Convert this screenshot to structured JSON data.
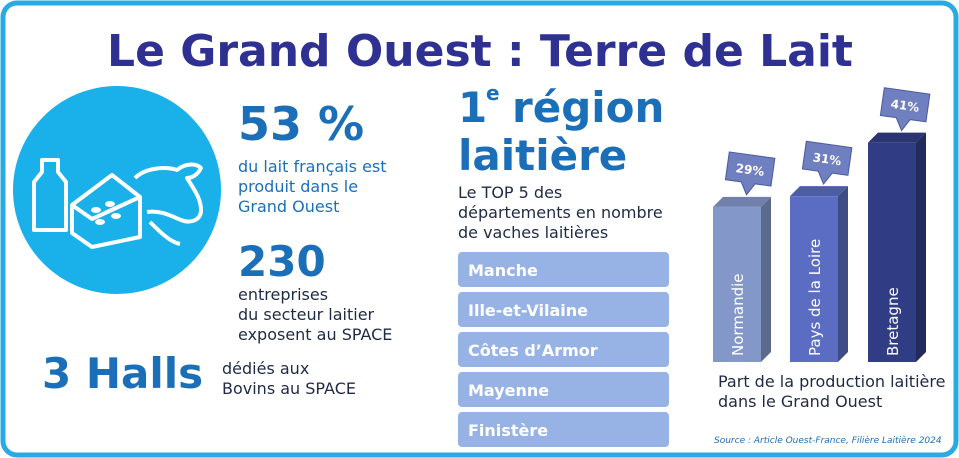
{
  "title": "Le Grand Ouest : Terre de Lait",
  "stats": {
    "share": {
      "value": "53 %",
      "lines": [
        "du lait français est",
        "produit dans le",
        "Grand Ouest"
      ]
    },
    "companies": {
      "value": "230",
      "lines": [
        "entreprises",
        "du secteur laitier",
        "exposent au SPACE"
      ]
    },
    "halls": {
      "value": "3 Halls",
      "lines": [
        "dédiés aux",
        "Bovins au SPACE"
      ]
    }
  },
  "ranking": {
    "rank": "1",
    "rank_suffix": "e",
    "heading_rest": "région",
    "heading_line2": "laitière",
    "intro": [
      "Le TOP 5 des",
      "départements en nombre",
      "de vaches laitières"
    ],
    "items": [
      "Manche",
      "Ille-et-Vilaine",
      "Côtes d’Armor",
      "Mayenne",
      "Finistère"
    ]
  },
  "chart": {
    "type": "bar",
    "categories": [
      "Normandie",
      "Pays de la Loire",
      "Bretagne"
    ],
    "values": [
      29,
      31,
      41
    ],
    "value_labels": [
      "29%",
      "31%",
      "41%"
    ],
    "colors": [
      "#8497c9",
      "#5a6dc2",
      "#303d84"
    ],
    "caption": [
      "Part de la production laitière",
      "dans le Grand Ouest"
    ]
  },
  "source": "Source : Article Ouest-France, Filière Laitière 2024"
}
